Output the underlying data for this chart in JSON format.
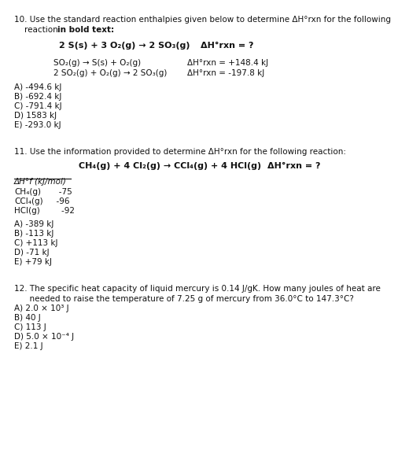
{
  "background_color": "#ffffff",
  "q10": {
    "line1": "10. Use the standard reaction enthalpies given below to determine ΔH°rxn for the following",
    "line2_normal": "    reaction ",
    "line2_bold": "in bold text:",
    "bold_rxn": "2 S(s) + 3 O₂(g) → 2 SO₃(g)",
    "bold_dH": "ΔH°rxn = ?",
    "sub_rxn1": "SO₂(g) → S(s) + O₂(g)",
    "sub_dH1": "ΔH°rxn = +148.4 kJ",
    "sub_rxn2": "2 SO₂(g) + O₂(g) → 2 SO₃(g)",
    "sub_dH2": "ΔH°rxn = -197.8 kJ",
    "choices": [
      "A) -494.6 kJ",
      "B) -692.4 kJ",
      "C) -791.4 kJ",
      "D) 1583 kJ",
      "E) -293.0 kJ"
    ]
  },
  "q11": {
    "line1": "11. Use the information provided to determine ΔH°rxn for the following reaction:",
    "bold_rxn": "CH₄(g) + 4 Cl₂(g) → CCl₄(g) + 4 HCl(g)",
    "bold_dH": "ΔH°rxn = ?",
    "table_header": "ΔH°f (kJ/mol)",
    "table_rows": [
      [
        "CH₄(g)",
        "   -75"
      ],
      [
        "CCl₄(g)",
        "  -96"
      ],
      [
        "HCl(g)",
        "    -92"
      ]
    ],
    "choices": [
      "A) -389 kJ",
      "B) -113 kJ",
      "C) +113 kJ",
      "D) -71 kJ",
      "E) +79 kJ"
    ]
  },
  "q12": {
    "line1": "12. The specific heat capacity of liquid mercury is 0.14 J/gK. How many joules of heat are",
    "line2": "      needed to raise the temperature of 7.25 g of mercury from 36.0°C to 147.3°C?",
    "choices": [
      "A) 2.0 × 10³ J",
      "B) 40 J",
      "C) 113 J",
      "D) 5.0 × 10⁻⁴ J",
      "E) 2.1 J"
    ]
  },
  "fs": 7.5,
  "fs_bold_rxn": 8.0
}
